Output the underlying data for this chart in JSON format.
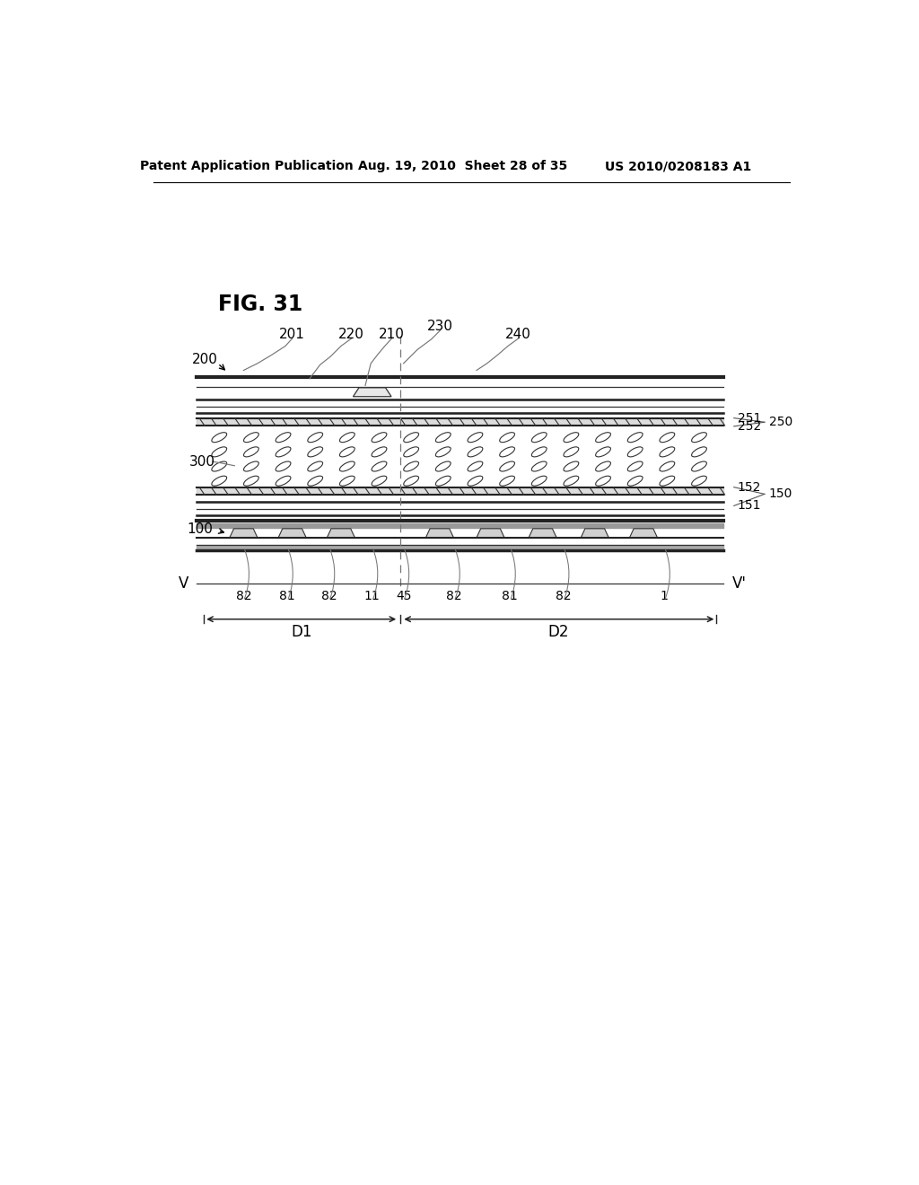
{
  "title": "FIG. 31",
  "header_left": "Patent Application Publication",
  "header_mid": "Aug. 19, 2010  Sheet 28 of 35",
  "header_right": "US 2010/0208183 A1",
  "bg_color": "#ffffff",
  "line_color": "#000000",
  "gray_color": "#888888",
  "light_gray": "#cccccc"
}
